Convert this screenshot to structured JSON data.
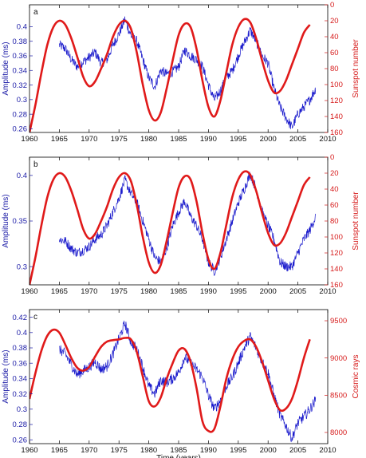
{
  "chart_data": [
    {
      "type": "line",
      "panel_label": "a",
      "xlim": [
        1960,
        2010
      ],
      "xticks": [
        1960,
        1965,
        1970,
        1975,
        1980,
        1985,
        1990,
        1995,
        2000,
        2005,
        2010
      ],
      "ylabel": "Amplitude (ms)",
      "ylim": [
        0.255,
        0.43
      ],
      "yticks": [
        0.26,
        0.28,
        0.3,
        0.32,
        0.34,
        0.36,
        0.38,
        0.4
      ],
      "y2label": "Sunspot number",
      "y2lim": [
        0,
        160
      ],
      "y2_inverted": true,
      "y2ticks": [
        0,
        20,
        40,
        60,
        80,
        100,
        120,
        140,
        160
      ],
      "xlabel": "",
      "series": [
        {
          "axis": "left",
          "color": "#1a1acc",
          "x": [
            1965,
            1966,
            1967,
            1968,
            1969,
            1970,
            1971,
            1972,
            1973,
            1974,
            1975,
            1976,
            1977,
            1978,
            1979,
            1980,
            1981,
            1982,
            1983,
            1984,
            1985,
            1986,
            1987,
            1988,
            1989,
            1990,
            1991,
            1992,
            1993,
            1994,
            1995,
            1996,
            1997,
            1998,
            1999,
            2000,
            2001,
            2002,
            2003,
            2004,
            2005,
            2006,
            2007,
            2008
          ],
          "y": [
            0.375,
            0.37,
            0.355,
            0.345,
            0.352,
            0.358,
            0.365,
            0.35,
            0.355,
            0.375,
            0.39,
            0.41,
            0.388,
            0.38,
            0.355,
            0.33,
            0.318,
            0.34,
            0.335,
            0.338,
            0.345,
            0.368,
            0.36,
            0.355,
            0.345,
            0.32,
            0.3,
            0.312,
            0.33,
            0.34,
            0.36,
            0.378,
            0.395,
            0.38,
            0.36,
            0.35,
            0.315,
            0.29,
            0.275,
            0.262,
            0.28,
            0.29,
            0.3,
            0.315
          ]
        },
        {
          "axis": "right",
          "color": "#e01a1a",
          "x": [
            1960,
            1961,
            1962,
            1963,
            1964,
            1965,
            1966,
            1967,
            1968,
            1969,
            1970,
            1971,
            1972,
            1973,
            1974,
            1975,
            1976,
            1977,
            1978,
            1979,
            1980,
            1981,
            1982,
            1983,
            1984,
            1985,
            1986,
            1987,
            1988,
            1989,
            1990,
            1991,
            1992,
            1993,
            1994,
            1995,
            1996,
            1997,
            1998,
            1999,
            2000,
            2001,
            2002,
            2003,
            2004,
            2005,
            2006,
            2007
          ],
          "y": [
            160,
            125,
            85,
            50,
            28,
            20,
            25,
            42,
            65,
            90,
            102,
            96,
            80,
            62,
            40,
            25,
            20,
            30,
            60,
            100,
            132,
            145,
            135,
            105,
            70,
            38,
            24,
            28,
            55,
            95,
            128,
            140,
            120,
            85,
            50,
            28,
            18,
            22,
            42,
            70,
            95,
            110,
            108,
            95,
            75,
            55,
            35,
            25
          ]
        }
      ]
    },
    {
      "type": "line",
      "panel_label": "b",
      "xlim": [
        1960,
        2010
      ],
      "xticks": [
        1960,
        1965,
        1970,
        1975,
        1980,
        1985,
        1990,
        1995,
        2000,
        2005,
        2010
      ],
      "ylabel": "Amplitude (ms)",
      "ylim": [
        0.28,
        0.42
      ],
      "yticks": [
        0.3,
        0.35,
        0.4
      ],
      "y2label": "Sunspot number",
      "y2lim": [
        0,
        160
      ],
      "y2_inverted": true,
      "y2ticks": [
        0,
        20,
        40,
        60,
        80,
        100,
        120,
        140,
        160
      ],
      "xlabel": "",
      "series": [
        {
          "axis": "left",
          "color": "#1a1acc",
          "x": [
            1965,
            1966,
            1967,
            1968,
            1969,
            1970,
            1971,
            1972,
            1973,
            1974,
            1975,
            1976,
            1977,
            1978,
            1979,
            1980,
            1981,
            1982,
            1983,
            1984,
            1985,
            1986,
            1987,
            1988,
            1989,
            1990,
            1991,
            1992,
            1993,
            1994,
            1995,
            1996,
            1997,
            1998,
            1999,
            2000,
            2001,
            2002,
            2003,
            2004,
            2005,
            2006,
            2007,
            2008
          ],
          "y": [
            0.33,
            0.328,
            0.32,
            0.315,
            0.318,
            0.322,
            0.33,
            0.335,
            0.345,
            0.36,
            0.375,
            0.395,
            0.38,
            0.37,
            0.35,
            0.33,
            0.31,
            0.305,
            0.32,
            0.345,
            0.36,
            0.372,
            0.355,
            0.345,
            0.33,
            0.305,
            0.295,
            0.31,
            0.33,
            0.35,
            0.37,
            0.385,
            0.402,
            0.385,
            0.36,
            0.345,
            0.33,
            0.305,
            0.3,
            0.3,
            0.315,
            0.33,
            0.34,
            0.355
          ]
        },
        {
          "axis": "right",
          "color": "#e01a1a",
          "x": [
            1960,
            1961,
            1962,
            1963,
            1964,
            1965,
            1966,
            1967,
            1968,
            1969,
            1970,
            1971,
            1972,
            1973,
            1974,
            1975,
            1976,
            1977,
            1978,
            1979,
            1980,
            1981,
            1982,
            1983,
            1984,
            1985,
            1986,
            1987,
            1988,
            1989,
            1990,
            1991,
            1992,
            1993,
            1994,
            1995,
            1996,
            1997,
            1998,
            1999,
            2000,
            2001,
            2002,
            2003,
            2004,
            2005,
            2006,
            2007
          ],
          "y": [
            160,
            125,
            85,
            50,
            28,
            20,
            25,
            42,
            65,
            90,
            102,
            96,
            80,
            62,
            40,
            25,
            20,
            30,
            60,
            100,
            132,
            145,
            135,
            105,
            70,
            38,
            24,
            28,
            55,
            95,
            128,
            140,
            120,
            85,
            50,
            28,
            18,
            22,
            42,
            70,
            95,
            110,
            108,
            95,
            75,
            55,
            35,
            25
          ]
        }
      ]
    },
    {
      "type": "line",
      "panel_label": "c",
      "xlim": [
        1960,
        2010
      ],
      "xticks": [
        1960,
        1965,
        1970,
        1975,
        1980,
        1985,
        1990,
        1995,
        2000,
        2005,
        2010
      ],
      "ylabel": "Amplitude (ms)",
      "ylim": [
        0.255,
        0.43
      ],
      "yticks": [
        0.26,
        0.28,
        0.3,
        0.32,
        0.34,
        0.36,
        0.38,
        0.4,
        0.42
      ],
      "y2label": "Cosmic rays",
      "y2lim": [
        7850,
        9650
      ],
      "y2_inverted": false,
      "y2ticks": [
        8000,
        8500,
        9000,
        9500
      ],
      "xlabel": "Time (years)",
      "series": [
        {
          "axis": "left",
          "color": "#1a1acc",
          "x": [
            1965,
            1966,
            1967,
            1968,
            1969,
            1970,
            1971,
            1972,
            1973,
            1974,
            1975,
            1976,
            1977,
            1978,
            1979,
            1980,
            1981,
            1982,
            1983,
            1984,
            1985,
            1986,
            1987,
            1988,
            1989,
            1990,
            1991,
            1992,
            1993,
            1994,
            1995,
            1996,
            1997,
            1998,
            1999,
            2000,
            2001,
            2002,
            2003,
            2004,
            2005,
            2006,
            2007,
            2008
          ],
          "y": [
            0.378,
            0.372,
            0.358,
            0.345,
            0.35,
            0.355,
            0.362,
            0.352,
            0.356,
            0.372,
            0.392,
            0.412,
            0.388,
            0.378,
            0.355,
            0.33,
            0.32,
            0.338,
            0.335,
            0.34,
            0.348,
            0.368,
            0.36,
            0.352,
            0.342,
            0.318,
            0.3,
            0.312,
            0.33,
            0.342,
            0.36,
            0.38,
            0.395,
            0.38,
            0.362,
            0.348,
            0.318,
            0.292,
            0.278,
            0.262,
            0.282,
            0.29,
            0.3,
            0.312
          ]
        },
        {
          "axis": "right",
          "color": "#e01a1a",
          "x": [
            1960,
            1961,
            1962,
            1963,
            1964,
            1965,
            1966,
            1967,
            1968,
            1969,
            1970,
            1971,
            1972,
            1973,
            1974,
            1975,
            1976,
            1977,
            1978,
            1979,
            1980,
            1981,
            1982,
            1983,
            1984,
            1985,
            1986,
            1987,
            1988,
            1989,
            1990,
            1991,
            1992,
            1993,
            1994,
            1995,
            1996,
            1997,
            1998,
            1999,
            2000,
            2001,
            2002,
            2003,
            2004,
            2005,
            2006,
            2007
          ],
          "y": [
            8450,
            8800,
            9100,
            9300,
            9380,
            9340,
            9180,
            9000,
            8870,
            8830,
            8880,
            9020,
            9150,
            9220,
            9240,
            9250,
            9270,
            9250,
            9080,
            8750,
            8420,
            8350,
            8470,
            8720,
            8930,
            9100,
            9120,
            8950,
            8600,
            8150,
            8020,
            8050,
            8350,
            8720,
            8980,
            9150,
            9230,
            9250,
            9150,
            8950,
            8700,
            8450,
            8300,
            8320,
            8450,
            8700,
            9000,
            9250
          ]
        }
      ]
    }
  ]
}
